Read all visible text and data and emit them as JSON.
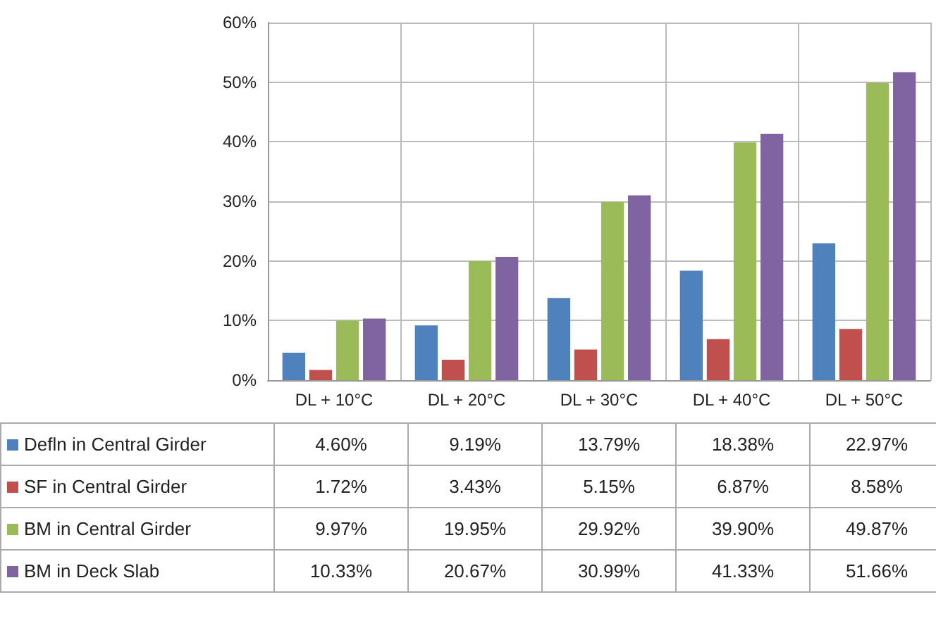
{
  "chart_data": {
    "type": "bar",
    "categories": [
      "DL + 10°C",
      "DL + 20°C",
      "DL + 30°C",
      "DL + 40°C",
      "DL + 50°C"
    ],
    "series": [
      {
        "name": "Defln in Central Girder",
        "color": "#4f81bd",
        "values": [
          4.6,
          9.19,
          13.79,
          18.38,
          22.97
        ],
        "value_labels": [
          "4.60%",
          "9.19%",
          "13.79%",
          "18.38%",
          "22.97%"
        ]
      },
      {
        "name": "SF in Central Girder",
        "color": "#c0504d",
        "values": [
          1.72,
          3.43,
          5.15,
          6.87,
          8.58
        ],
        "value_labels": [
          "1.72%",
          "3.43%",
          "5.15%",
          "6.87%",
          "8.58%"
        ]
      },
      {
        "name": "BM in Central Girder",
        "color": "#9bbb59",
        "values": [
          9.97,
          19.95,
          29.92,
          39.9,
          49.87
        ],
        "value_labels": [
          "9.97%",
          "19.95%",
          "29.92%",
          "39.90%",
          "49.87%"
        ]
      },
      {
        "name": "BM in Deck Slab",
        "color": "#8064a2",
        "values": [
          10.33,
          20.67,
          30.99,
          41.33,
          51.66
        ],
        "value_labels": [
          "10.33%",
          "20.67%",
          "30.99%",
          "41.33%",
          "51.66%"
        ]
      }
    ],
    "ylim": [
      0,
      60
    ],
    "yticks": [
      {
        "value": 0,
        "label": "0%"
      },
      {
        "value": 10,
        "label": "10%"
      },
      {
        "value": 20,
        "label": "20%"
      },
      {
        "value": 30,
        "label": "30%"
      },
      {
        "value": 40,
        "label": "40%"
      },
      {
        "value": 50,
        "label": "50%"
      },
      {
        "value": 60,
        "label": "60%"
      }
    ],
    "grid": true,
    "legend": "bottom"
  }
}
